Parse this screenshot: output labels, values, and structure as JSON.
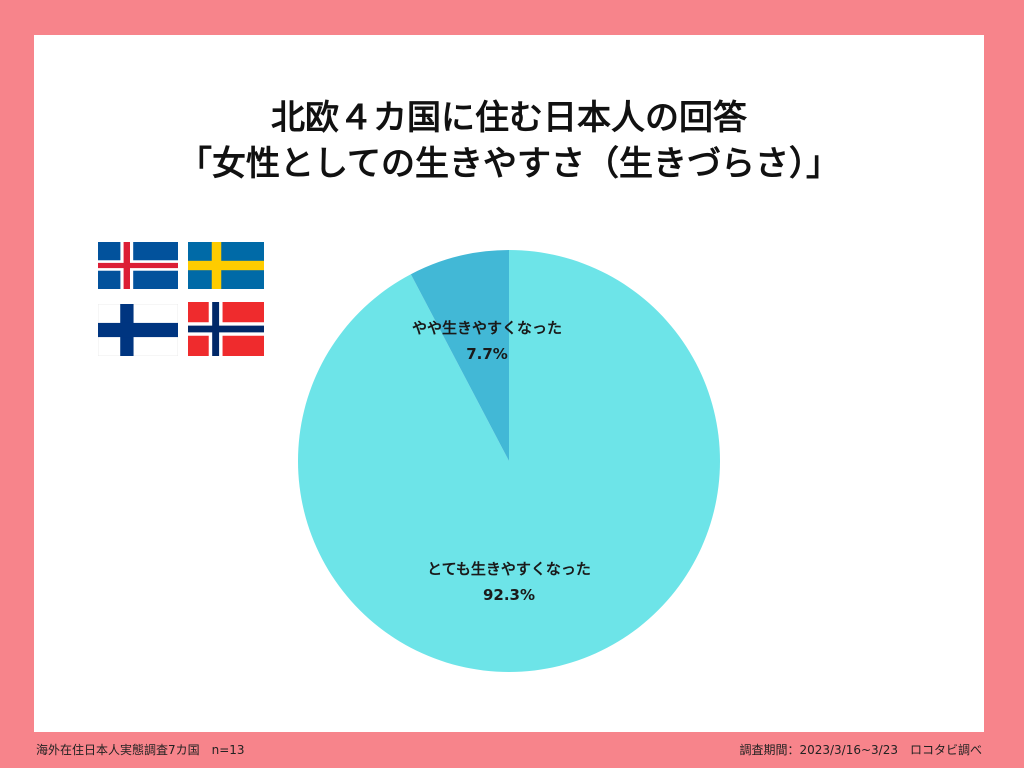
{
  "title": {
    "line1": "北欧４カ国に住む日本人の回答",
    "line2": "「女性としての生きやすさ（生きづらさ）」"
  },
  "flags": [
    {
      "name": "iceland-flag-icon",
      "colors": [
        "#02529c",
        "#ffffff",
        "#dc1e35"
      ]
    },
    {
      "name": "sweden-flag-icon",
      "colors": [
        "#006aa7",
        "#fecc00"
      ]
    },
    {
      "name": "finland-flag-icon",
      "colors": [
        "#ffffff",
        "#003580"
      ]
    },
    {
      "name": "norway-flag-icon",
      "colors": [
        "#ef2b2d",
        "#ffffff",
        "#002868"
      ]
    }
  ],
  "chart_data": {
    "type": "pie",
    "slices": [
      {
        "label": "とても生きやすくなった",
        "value": 92.3,
        "value_label": "92.3%",
        "color": "#6de4e8"
      },
      {
        "label": "やや生きやすくなった",
        "value": 7.7,
        "value_label": "7.7%",
        "color": "#42b8d6"
      }
    ]
  },
  "footer": {
    "left": "海外在住日本人実態調査7カ国　n=13",
    "right": "調査期間：2023/3/16~3/23　ロコタビ調べ"
  }
}
